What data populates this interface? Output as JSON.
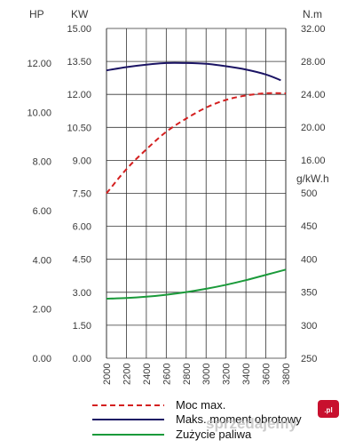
{
  "chart_data": {
    "type": "line",
    "x": [
      2000,
      2200,
      2400,
      2600,
      2800,
      3000,
      3200,
      3400,
      3600,
      3800
    ],
    "x_tick_labels": [
      "2000",
      "2200",
      "2400",
      "2600",
      "2800",
      "3000",
      "3200",
      "3400",
      "3600",
      "3800"
    ],
    "xlim": [
      2000,
      3800
    ],
    "axes": {
      "hp": {
        "label": "HP",
        "ticks": [
          "0.00",
          "2.00",
          "4.00",
          "6.00",
          "8.00",
          "10.00",
          "12.00"
        ]
      },
      "kw": {
        "label": "KW",
        "ylim": [
          0,
          15
        ],
        "ticks": [
          "0.00",
          "1.50",
          "3.00",
          "4.50",
          "6.00",
          "7.50",
          "9.00",
          "10.50",
          "12.00",
          "13.50",
          "15.00"
        ]
      },
      "nm": {
        "label": "N.m",
        "ylim": [
          16,
          32
        ],
        "ticks": [
          "16.00",
          "20.00",
          "24.00",
          "28.00",
          "32.00"
        ]
      },
      "gkwh": {
        "label": "g/kW.h",
        "ylim": [
          250,
          500
        ],
        "ticks": [
          "250",
          "300",
          "350",
          "400",
          "450",
          "500"
        ]
      }
    },
    "series": [
      {
        "name": "Moc max.",
        "axis": "kw",
        "style": "dashed",
        "color": "#d42020",
        "x": [
          2000,
          2200,
          2400,
          2600,
          2800,
          3000,
          3200,
          3400,
          3600,
          3800
        ],
        "values": [
          7.5,
          8.6,
          9.5,
          10.3,
          10.9,
          11.4,
          11.75,
          11.95,
          12.05,
          12.05
        ]
      },
      {
        "name": "Maks. moment obrotowy",
        "axis": "nm",
        "style": "solid",
        "color": "#1b1464",
        "x": [
          2000,
          2200,
          2400,
          2600,
          2800,
          3000,
          3200,
          3400,
          3600,
          3750
        ],
        "values": [
          26.9,
          27.3,
          27.6,
          27.8,
          27.8,
          27.7,
          27.4,
          27.0,
          26.4,
          25.7
        ]
      },
      {
        "name": "Zużycie paliwa",
        "axis": "gkwh",
        "style": "solid",
        "color": "#1a9a3a",
        "x": [
          2000,
          2200,
          2400,
          2600,
          2800,
          3000,
          3200,
          3400,
          3600,
          3800
        ],
        "values": [
          340,
          341,
          343,
          346,
          350,
          355,
          361,
          368,
          376,
          384
        ]
      }
    ],
    "grid": true,
    "legend_position": "bottom"
  },
  "legend": {
    "items": [
      "Moc max.",
      "Maks. moment obrotowy",
      "Zużycie paliwa"
    ]
  },
  "watermark": {
    "text": "sprzedajemy",
    "badge": ".pl"
  }
}
